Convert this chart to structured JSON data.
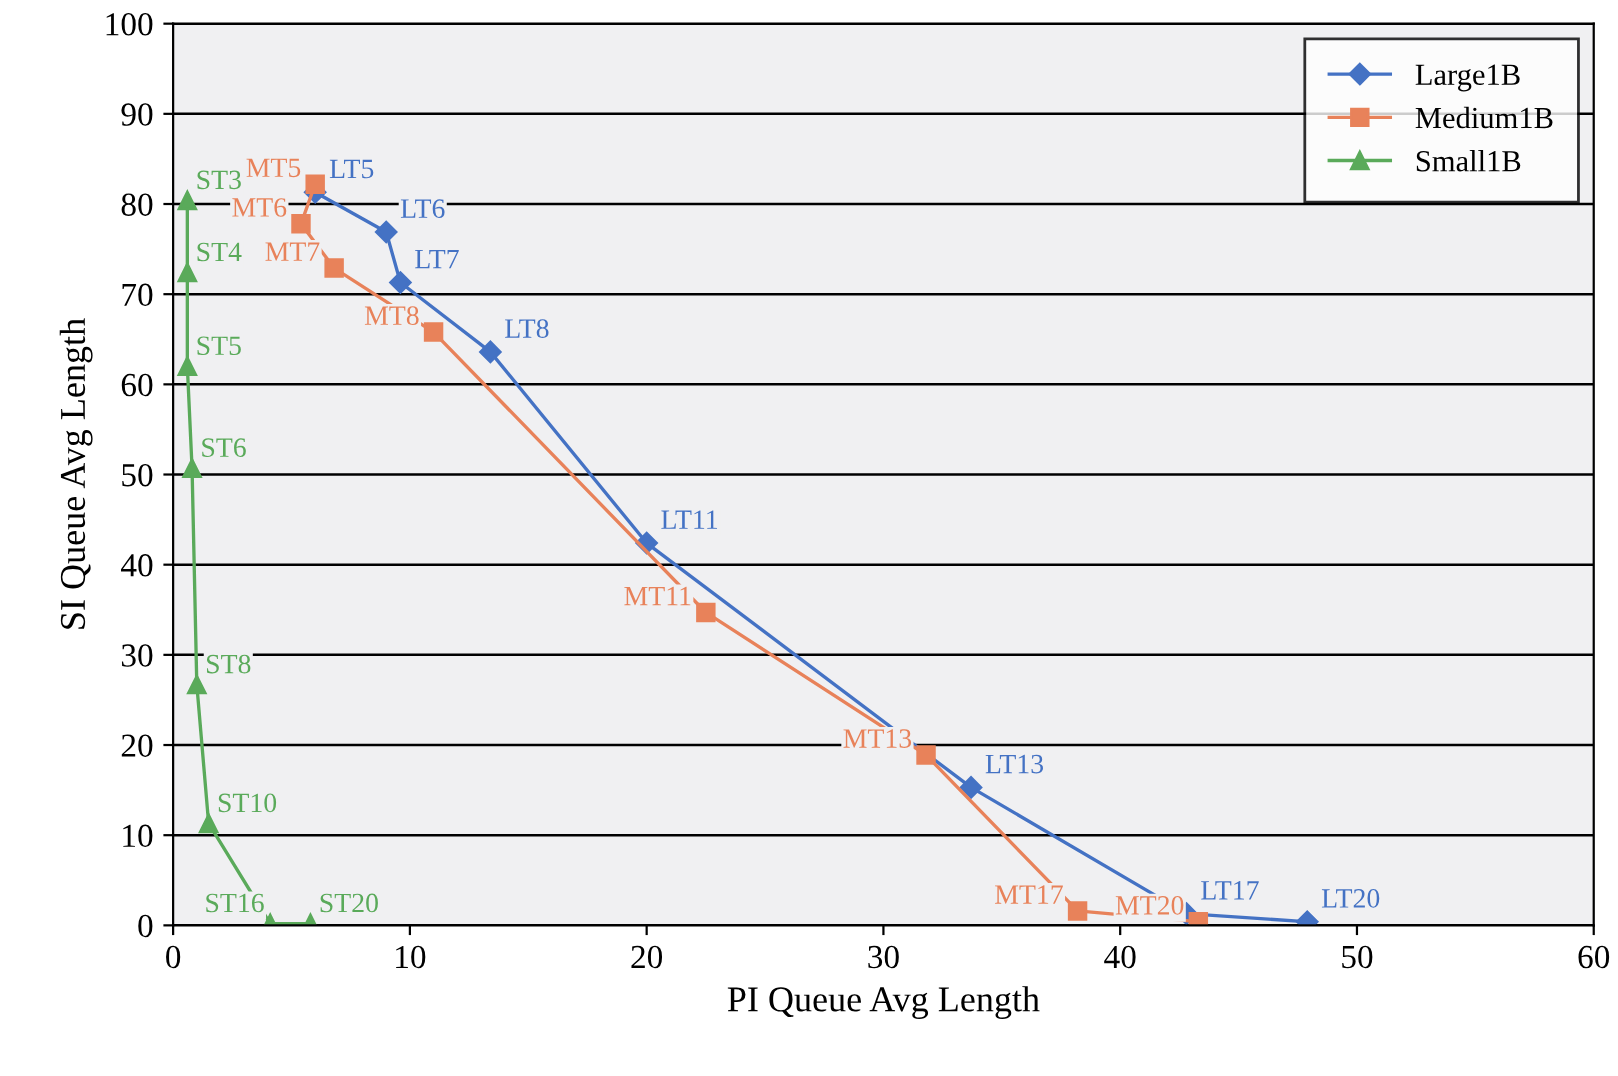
{
  "chart_data": {
    "type": "line",
    "xlabel": "PI Queue Avg Length",
    "ylabel": "SI Queue Avg Length",
    "xlim": [
      0,
      60
    ],
    "xticks": [
      0,
      10,
      20,
      30,
      40,
      50,
      60
    ],
    "ylim": [
      0,
      100
    ],
    "yticks": [
      0,
      10,
      20,
      30,
      40,
      50,
      60,
      70,
      80,
      90,
      100
    ],
    "grid": "y",
    "legend": "top right",
    "series": [
      {
        "name": "Large1B",
        "color": "#4472c4",
        "marker": "diamond",
        "x": [
          6.0,
          9.0,
          9.6,
          13.4,
          20.0,
          33.7,
          42.8,
          47.9
        ],
        "values": [
          81.3,
          76.9,
          71.3,
          63.6,
          42.4,
          15.3,
          1.3,
          0.4
        ],
        "value_labels": [
          "LT5",
          "LT6",
          "LT7",
          "LT8",
          "LT11",
          "LT13",
          "LT17",
          "LT20"
        ]
      },
      {
        "name": "Medium1B",
        "color": "#e8825a",
        "marker": "square",
        "x": [
          6.0,
          5.4,
          6.8,
          11.0,
          22.5,
          31.8,
          38.2,
          43.3
        ],
        "values": [
          82.2,
          77.8,
          72.9,
          65.8,
          34.7,
          18.9,
          1.6,
          0.4
        ],
        "value_labels": [
          "MT5",
          "MT6",
          "MT7",
          "MT8",
          "MT11",
          "MT13",
          "MT17",
          "MT20"
        ]
      },
      {
        "name": "Small1B",
        "color": "#5aaa5a",
        "marker": "triangle",
        "x": [
          0.6,
          0.6,
          0.6,
          0.8,
          1.0,
          1.5,
          4.1,
          5.8
        ],
        "values": [
          80.4,
          72.4,
          62.0,
          50.7,
          26.7,
          11.3,
          0.2,
          0.2
        ],
        "value_labels": [
          "ST3",
          "ST4",
          "ST5",
          "ST6",
          "ST8",
          "ST10",
          "ST16",
          "ST20"
        ]
      }
    ]
  }
}
